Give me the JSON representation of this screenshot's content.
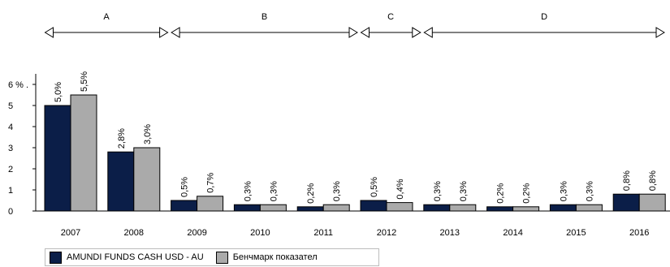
{
  "chart_data": {
    "type": "bar",
    "categories": [
      "2007",
      "2008",
      "2009",
      "2010",
      "2011",
      "2012",
      "2013",
      "2014",
      "2015",
      "2016"
    ],
    "series": [
      {
        "name": "AMUNDI FUNDS CASH USD - AU",
        "values": [
          5.0,
          2.8,
          0.5,
          0.3,
          0.2,
          0.5,
          0.3,
          0.2,
          0.3,
          0.8
        ],
        "labels": [
          "5,0%",
          "2,8%",
          "0,5%",
          "0,3%",
          "0,2%",
          "0,5%",
          "0,3%",
          "0,2%",
          "0,3%",
          "0,8%"
        ],
        "color": "#0b1e48"
      },
      {
        "name": "Бенчмарк показател",
        "values": [
          5.5,
          3.0,
          0.7,
          0.3,
          0.3,
          0.4,
          0.3,
          0.2,
          0.3,
          0.8
        ],
        "labels": [
          "5,5%",
          "3,0%",
          "0,7%",
          "0,3%",
          "0,3%",
          "0,4%",
          "0,3%",
          "0,2%",
          "0,3%",
          "0,8%"
        ],
        "color": "#aaaaaa"
      }
    ],
    "y_ticks": [
      "0",
      "1",
      "2",
      "3",
      "4",
      "5",
      "6 % ."
    ],
    "ylim": [
      0,
      6.5
    ],
    "periods": [
      {
        "label": "A",
        "from": "2007",
        "to": "2008"
      },
      {
        "label": "B",
        "from": "2009",
        "to": "2011"
      },
      {
        "label": "C",
        "from": "2012",
        "to": "2012"
      },
      {
        "label": "D",
        "from": "2013",
        "to": "2016"
      }
    ],
    "legend_position": "bottom-left",
    "grid": false
  }
}
